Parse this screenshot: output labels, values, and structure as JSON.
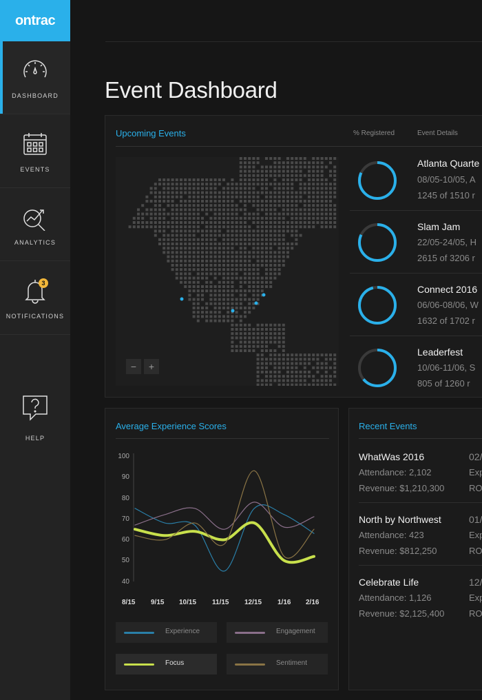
{
  "app": {
    "logo": "ontrac"
  },
  "sidebar": {
    "items": [
      {
        "label": "DASHBOARD",
        "icon": "gauge-icon"
      },
      {
        "label": "EVENTS",
        "icon": "calendar-icon"
      },
      {
        "label": "ANALYTICS",
        "icon": "analytics-icon"
      },
      {
        "label": "NOTIFICATIONS",
        "icon": "bell-icon",
        "badge": "3"
      },
      {
        "label": "HELP",
        "icon": "help-icon"
      }
    ]
  },
  "header": {
    "title": "Event Dashboard"
  },
  "upcoming": {
    "title": "Upcoming Events",
    "col_registered": "% Registered",
    "col_details": "Event Details",
    "zoom_out": "−",
    "zoom_in": "+",
    "events": [
      {
        "name": "Atlanta Quarte",
        "dates": "08/05-10/05, A",
        "registered": "1245 of 1510 r",
        "fraction": 0.82
      },
      {
        "name": "Slam Jam",
        "dates": "22/05-24/05, H",
        "registered": "2615 of 3206 r",
        "fraction": 0.82
      },
      {
        "name": "Connect 2016",
        "dates": "06/06-08/06, W",
        "registered": "1632 of 1702 r",
        "fraction": 0.96
      },
      {
        "name": "Leaderfest",
        "dates": "10/06-11/06, S",
        "registered": "805 of 1260 r",
        "fraction": 0.64
      }
    ]
  },
  "scores": {
    "title": "Average Experience Scores",
    "legend": [
      {
        "label": "Experience",
        "color": "#2a7fa8"
      },
      {
        "label": "Engagement",
        "color": "#8a6f8a"
      },
      {
        "label": "Focus",
        "color": "#c8e04c"
      },
      {
        "label": "Sentiment",
        "color": "#8a7445"
      }
    ]
  },
  "chart_data": {
    "type": "line",
    "x": [
      "8/15",
      "9/15",
      "10/15",
      "11/15",
      "12/15",
      "1/16",
      "2/16"
    ],
    "y_ticks": [
      "100",
      "90",
      "80",
      "70",
      "60",
      "50",
      "40"
    ],
    "ylim": [
      40,
      100
    ],
    "series": [
      {
        "name": "Experience",
        "color": "#2a7fa8",
        "values": [
          75,
          68,
          67,
          45,
          75,
          72,
          63
        ]
      },
      {
        "name": "Engagement",
        "color": "#8a6f8a",
        "values": [
          67,
          72,
          75,
          65,
          78,
          66,
          71
        ]
      },
      {
        "name": "Focus",
        "color": "#c8e04c",
        "values": [
          65,
          62,
          64,
          60,
          68,
          50,
          52
        ]
      },
      {
        "name": "Sentiment",
        "color": "#8a7445",
        "values": [
          62,
          60,
          68,
          58,
          93,
          52,
          65
        ]
      }
    ]
  },
  "recent": {
    "title": "Recent Events",
    "events": [
      {
        "name": "WhatWas 2016",
        "attendance": "Attendance: 2,102",
        "revenue": "Revenue: $1,210,300",
        "r1": "02/",
        "r2": "Exp",
        "r3": "RO"
      },
      {
        "name": "North by Northwest",
        "attendance": "Attendance: 423",
        "revenue": "Revenue: $812,250",
        "r1": "01/",
        "r2": "Exp",
        "r3": "RO"
      },
      {
        "name": "Celebrate Life",
        "attendance": "Attendance: 1,126",
        "revenue": "Revenue: $2,125,400",
        "r1": "12/",
        "r2": "Exp",
        "r3": "RO"
      }
    ]
  }
}
